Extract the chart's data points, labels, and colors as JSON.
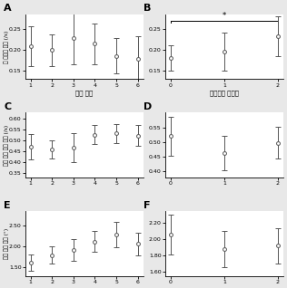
{
  "A": {
    "x": [
      1,
      2,
      3,
      4,
      5,
      6
    ],
    "y": [
      0.208,
      0.199,
      0.228,
      0.214,
      0.185,
      0.178
    ],
    "yerr": [
      0.048,
      0.038,
      0.062,
      0.048,
      0.042,
      0.055
    ],
    "ylim": [
      0.13,
      0.285
    ],
    "yticks": [
      0.15,
      0.2,
      0.25
    ],
    "xticks": [
      1,
      2,
      3,
      4,
      5,
      6
    ],
    "label": "A"
  },
  "B": {
    "x": [
      0,
      1,
      2
    ],
    "y": [
      0.18,
      0.195,
      0.232
    ],
    "yerr": [
      0.03,
      0.045,
      0.048
    ],
    "ylim": [
      0.13,
      0.285
    ],
    "yticks": [
      0.15,
      0.2,
      0.25
    ],
    "xticks": [
      0,
      1,
      2
    ],
    "label": "B",
    "bracket_x0": 0,
    "bracket_x1": 2,
    "bracket_y": 0.27,
    "bracket_text": "*"
  },
  "C": {
    "x": [
      1,
      2,
      3,
      4,
      5,
      6
    ],
    "y": [
      0.472,
      0.46,
      0.468,
      0.528,
      0.533,
      0.523
    ],
    "yerr": [
      0.06,
      0.042,
      0.065,
      0.045,
      0.042,
      0.048
    ],
    "ylim": [
      0.33,
      0.63
    ],
    "yticks": [
      0.35,
      0.4,
      0.45,
      0.5,
      0.55,
      0.6
    ],
    "xticks": [
      1,
      2,
      3,
      4,
      5,
      6
    ],
    "label": "C"
  },
  "D": {
    "x": [
      0,
      1,
      2
    ],
    "y": [
      0.52,
      0.462,
      0.498
    ],
    "yerr": [
      0.065,
      0.058,
      0.055
    ],
    "ylim": [
      0.38,
      0.6
    ],
    "yticks": [
      0.4,
      0.45,
      0.5,
      0.55
    ],
    "xticks": [
      0,
      1,
      2
    ],
    "label": "D"
  },
  "E": {
    "x": [
      1,
      2,
      3,
      4,
      5,
      6
    ],
    "y": [
      1.62,
      1.8,
      1.92,
      2.12,
      2.28,
      2.06
    ],
    "yerr": [
      0.2,
      0.2,
      0.25,
      0.25,
      0.3,
      0.28
    ],
    "ylim": [
      1.3,
      2.85
    ],
    "yticks": [
      1.5,
      2.0,
      2.5
    ],
    "xticks": [
      1,
      2,
      3,
      4,
      5,
      6
    ],
    "label": "E"
  },
  "F": {
    "x": [
      0,
      1,
      2
    ],
    "y": [
      2.06,
      1.88,
      1.92
    ],
    "yerr": [
      0.25,
      0.22,
      0.22
    ],
    "ylim": [
      1.55,
      2.35
    ],
    "yticks": [
      1.6,
      1.8,
      2.0,
      2.2
    ],
    "xticks": [
      0,
      1,
      2
    ],
    "label": "F"
  },
  "ylabel_row0": "눈 깨박임 비율 (/s)",
  "ylabel_row1": "도약 안구 운동 비율 (/s)",
  "ylabel_row2": "도약 안구 진폭 (°)",
  "xlabel_left": "시행 순서",
  "xlabel_right": "이차과제 난이도",
  "line_color": "#555555",
  "bg_color": "#ffffff",
  "fig_bg": "#e8e8e8"
}
